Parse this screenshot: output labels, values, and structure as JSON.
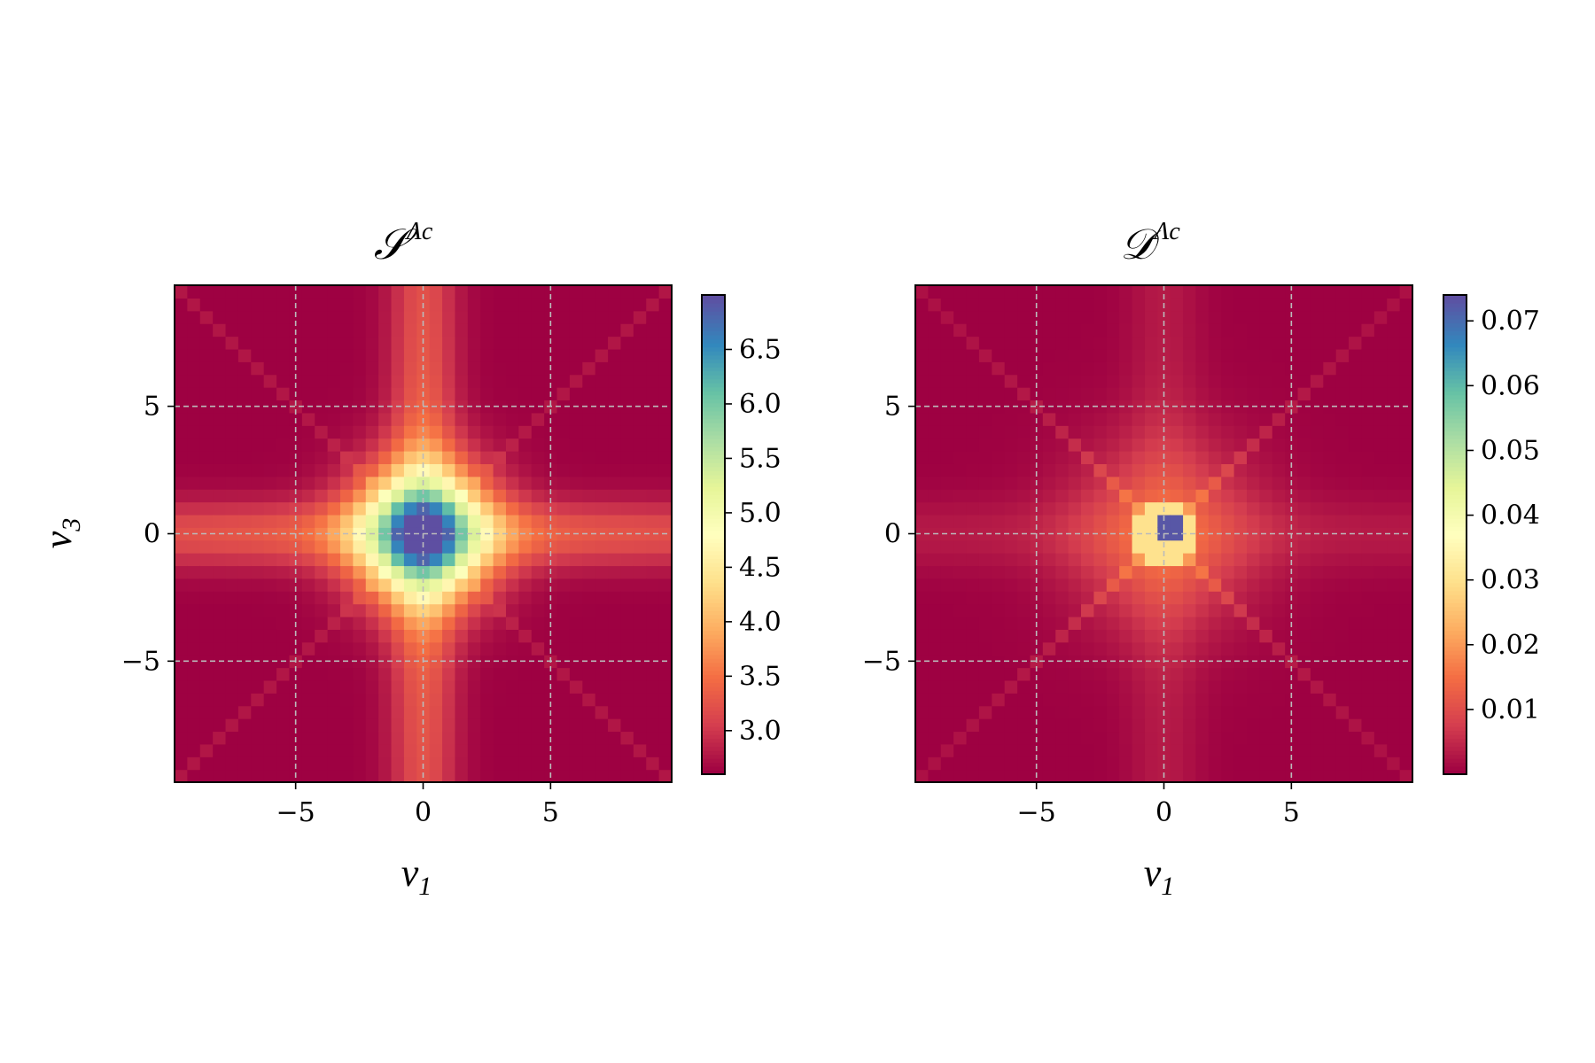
{
  "colormap": [
    "#9e0142",
    "#d53e4f",
    "#f46d43",
    "#fdae61",
    "#fee08b",
    "#ffffbf",
    "#e6f598",
    "#abdda4",
    "#66c2a5",
    "#3288bd",
    "#5e4fa2"
  ],
  "grid": {
    "style": "dashed",
    "color": "#bbbbbb"
  },
  "chart_data": [
    {
      "type": "heatmap",
      "title": {
        "symbol": "𝒮",
        "superscript": "Λc"
      },
      "xlabel": {
        "symbol": "ν",
        "subscript": "1"
      },
      "ylabel": {
        "symbol": "ν",
        "subscript": "3"
      },
      "xlim": [
        -9.75,
        9.75
      ],
      "ylim": [
        -9.75,
        9.75
      ],
      "grid_n": 39,
      "x_ticks": [
        {
          "value": -5,
          "label": "−5"
        },
        {
          "value": 0,
          "label": "0"
        },
        {
          "value": 5,
          "label": "5"
        }
      ],
      "y_ticks": [
        {
          "value": 5,
          "label": "5"
        },
        {
          "value": 0,
          "label": "0"
        },
        {
          "value": -5,
          "label": "−5"
        }
      ],
      "grid_lines": {
        "x": [
          -5,
          0,
          5
        ],
        "y": [
          -5,
          0,
          5
        ]
      },
      "value_range": [
        2.6,
        7.0
      ],
      "colorbar_ticks": [
        {
          "value": 3.0,
          "label": "3.0"
        },
        {
          "value": 3.5,
          "label": "3.5"
        },
        {
          "value": 4.0,
          "label": "4.0"
        },
        {
          "value": 4.5,
          "label": "4.5"
        },
        {
          "value": 5.0,
          "label": "5.0"
        },
        {
          "value": 5.5,
          "label": "5.5"
        },
        {
          "value": 6.0,
          "label": "6.0"
        },
        {
          "value": 6.5,
          "label": "6.5"
        }
      ],
      "model": {
        "kind": "cross",
        "base": 2.6,
        "radial_amp": 3.4,
        "radial_width": 1.8,
        "band_amp": 0.9,
        "band_width": 0.9,
        "diag_amp": 0.15,
        "peak": 7.0,
        "peak_radius": 0.6
      }
    },
    {
      "type": "heatmap",
      "title": {
        "symbol": "𝒟",
        "superscript": "Λc"
      },
      "xlabel": {
        "symbol": "ν",
        "subscript": "1"
      },
      "ylabel": {
        "symbol": "",
        "subscript": ""
      },
      "xlim": [
        -9.75,
        9.75
      ],
      "ylim": [
        -9.75,
        9.75
      ],
      "grid_n": 39,
      "x_ticks": [
        {
          "value": -5,
          "label": "−5"
        },
        {
          "value": 0,
          "label": "0"
        },
        {
          "value": 5,
          "label": "5"
        }
      ],
      "y_ticks": [
        {
          "value": 5,
          "label": "5"
        },
        {
          "value": 0,
          "label": "0"
        },
        {
          "value": -5,
          "label": "−5"
        }
      ],
      "grid_lines": {
        "x": [
          -5,
          0,
          5
        ],
        "y": [
          -5,
          0,
          5
        ]
      },
      "value_range": [
        0.0,
        0.074
      ],
      "colorbar_ticks": [
        {
          "value": 0.01,
          "label": "0.01"
        },
        {
          "value": 0.02,
          "label": "0.02"
        },
        {
          "value": 0.03,
          "label": "0.03"
        },
        {
          "value": 0.04,
          "label": "0.04"
        },
        {
          "value": 0.05,
          "label": "0.05"
        },
        {
          "value": 0.06,
          "label": "0.06"
        },
        {
          "value": 0.07,
          "label": "0.07"
        }
      ],
      "model": {
        "kind": "x",
        "base": 0.0,
        "radial_amp": 0.012,
        "radial_width": 2.5,
        "diag_amp": 0.008,
        "peak": 0.073,
        "ring": 0.03,
        "peak_radius": 0.6
      }
    }
  ]
}
